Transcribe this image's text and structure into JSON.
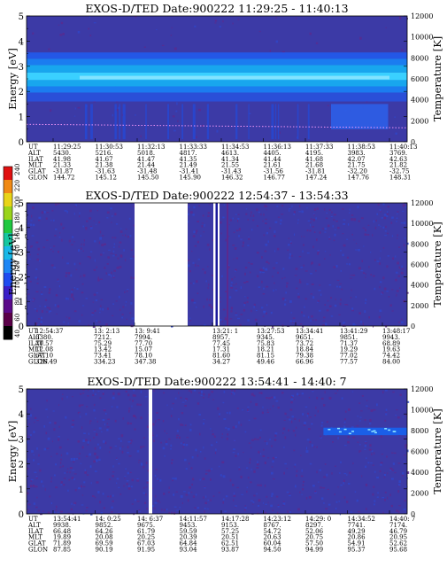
{
  "colorbar": {
    "title": "Second Harmonic Current",
    "ticks": [
      "40",
      "60",
      "80",
      "100",
      "120",
      "140",
      "160",
      "180",
      "200",
      "220",
      "240"
    ]
  },
  "chart_data": [
    {
      "type": "heatmap",
      "title": "EXOS-D/TED   Date:900222   11:29:25 - 11:40:13",
      "ylabel": "Energy [eV]",
      "y2label": "Temperature [K]",
      "ylim": [
        0,
        5
      ],
      "y_ticks": [
        "0",
        "1",
        "2",
        "3",
        "4",
        "5"
      ],
      "y2lim": [
        0,
        12000
      ],
      "y2_ticks": [
        "0",
        "2000",
        "4000",
        "6000",
        "8000",
        "10000",
        "12000"
      ],
      "row_labels": [
        "UT",
        "ALT",
        "ILAT",
        "MLT",
        "GLAT",
        "GLON"
      ],
      "columns": [
        [
          "11:29:25",
          "5430.",
          "41.98",
          "21.33",
          "-31.87",
          "144.72"
        ],
        [
          "11:30:53",
          "5216.",
          "41.67",
          "21.38",
          "-31.63",
          "145.12"
        ],
        [
          "11:32:13",
          "5018.",
          "41.47",
          "21.44",
          "-31.48",
          "145.50"
        ],
        [
          "11:33:33",
          "4817.",
          "41.35",
          "21.49",
          "-31.41",
          "145.90"
        ],
        [
          "11:34:53",
          "4613.",
          "41.34",
          "21.55",
          "-31.43",
          "146.32"
        ],
        [
          "11:36:13",
          "4405.",
          "41.44",
          "21.61",
          "-31.56",
          "146.77"
        ],
        [
          "11:37:33",
          "4195.",
          "41.68",
          "21.68",
          "-31.81",
          "147.24"
        ],
        [
          "11:38:53",
          "3983.",
          "42.07",
          "21.75",
          "-32.20",
          "147.76"
        ],
        [
          "11:40:13",
          "3769.",
          "42.63",
          "21.82",
          "-32.75",
          "148.31"
        ]
      ],
      "features": [
        "bright band 2.2-3.4 eV",
        "temperature trace near 1500 K"
      ]
    },
    {
      "type": "heatmap",
      "title": "EXOS-D/TED   Date:900222   12:54:37 - 13:54:33",
      "ylabel": "Energy [eV]",
      "y2label": "Temperature [K]",
      "ylim": [
        0,
        5
      ],
      "y_ticks": [
        "0",
        "1",
        "2",
        "3",
        "4",
        "5"
      ],
      "y2lim": [
        0,
        12000
      ],
      "y2_ticks": [
        "0",
        "2000",
        "4000",
        "6000",
        "8000",
        "10000",
        "12000"
      ],
      "row_labels": [
        "UT",
        "ALT",
        "ILAT",
        "MLT",
        "GLAT",
        "GLON"
      ],
      "columns": [
        [
          "12:54:37",
          "6380.",
          "70.57",
          "12.08",
          "67.10",
          "326.49"
        ],
        [
          "13: 2:13",
          "7212.",
          "75.29",
          "13.42",
          "73.41",
          "334.23"
        ],
        [
          "13: 9:41",
          "7994.",
          "77.70",
          "15.07",
          "78.10",
          "347.38"
        ],
        [
          "13:21: 1",
          "8957.",
          "77.45",
          "17.31",
          "81.60",
          "34.27"
        ],
        [
          "13:27:53",
          "9345.",
          "75.83",
          "18.21",
          "81.15",
          "49.46"
        ],
        [
          "13:34:41",
          "9651.",
          "73.72",
          "18.84",
          "79.38",
          "66.96"
        ],
        [
          "13:41:29",
          "9851.",
          "71.37",
          "19.29",
          "77.02",
          "77.57"
        ],
        [
          "13:48:17",
          "9943.",
          "68.89",
          "19.63",
          "74.42",
          "84.00"
        ]
      ],
      "features": [
        "data gaps"
      ]
    },
    {
      "type": "heatmap",
      "title": "EXOS-D/TED   Date:900222   13:54:41 - 14:40: 7",
      "ylabel": "Energy [eV]",
      "y2label": "Temperature [K]",
      "ylim": [
        0,
        5
      ],
      "y_ticks": [
        "0",
        "1",
        "2",
        "3",
        "4",
        "5"
      ],
      "y2lim": [
        0,
        12000
      ],
      "y2_ticks": [
        "0",
        "2000",
        "4000",
        "6000",
        "8000",
        "10000",
        "12000"
      ],
      "row_labels": [
        "UT",
        "ALT",
        "ILAT",
        "MLT",
        "GLAT",
        "GLON"
      ],
      "columns": [
        [
          "13:54:41",
          "9938.",
          "66.48",
          "19.89",
          "71.89",
          "87.85"
        ],
        [
          "14: 0:25",
          "9852.",
          "64.26",
          "20.08",
          "69.59",
          "90.19"
        ],
        [
          "14: 6:37",
          "9675.",
          "61.79",
          "20.25",
          "67.03",
          "91.95"
        ],
        [
          "14:11:57",
          "9453.",
          "59.59",
          "20.39",
          "64.84",
          "93.04"
        ],
        [
          "14:17:28",
          "9153.",
          "57.25",
          "20.51",
          "62.51",
          "93.87"
        ],
        [
          "14:23:12",
          "8767.",
          "54.72",
          "20.63",
          "60.04",
          "94.50"
        ],
        [
          "14:29: 0",
          "8297.",
          "52.06",
          "20.75",
          "57.50",
          "94.99"
        ],
        [
          "14:34:52",
          "7741.",
          "49.29",
          "20.86",
          "54.91",
          "95.37"
        ],
        [
          "14:40: 7",
          "7174.",
          "46.79",
          "20.95",
          "52.62",
          "95.68"
        ]
      ],
      "features": [
        "data gap",
        "band near 3.3 eV at right"
      ]
    }
  ]
}
